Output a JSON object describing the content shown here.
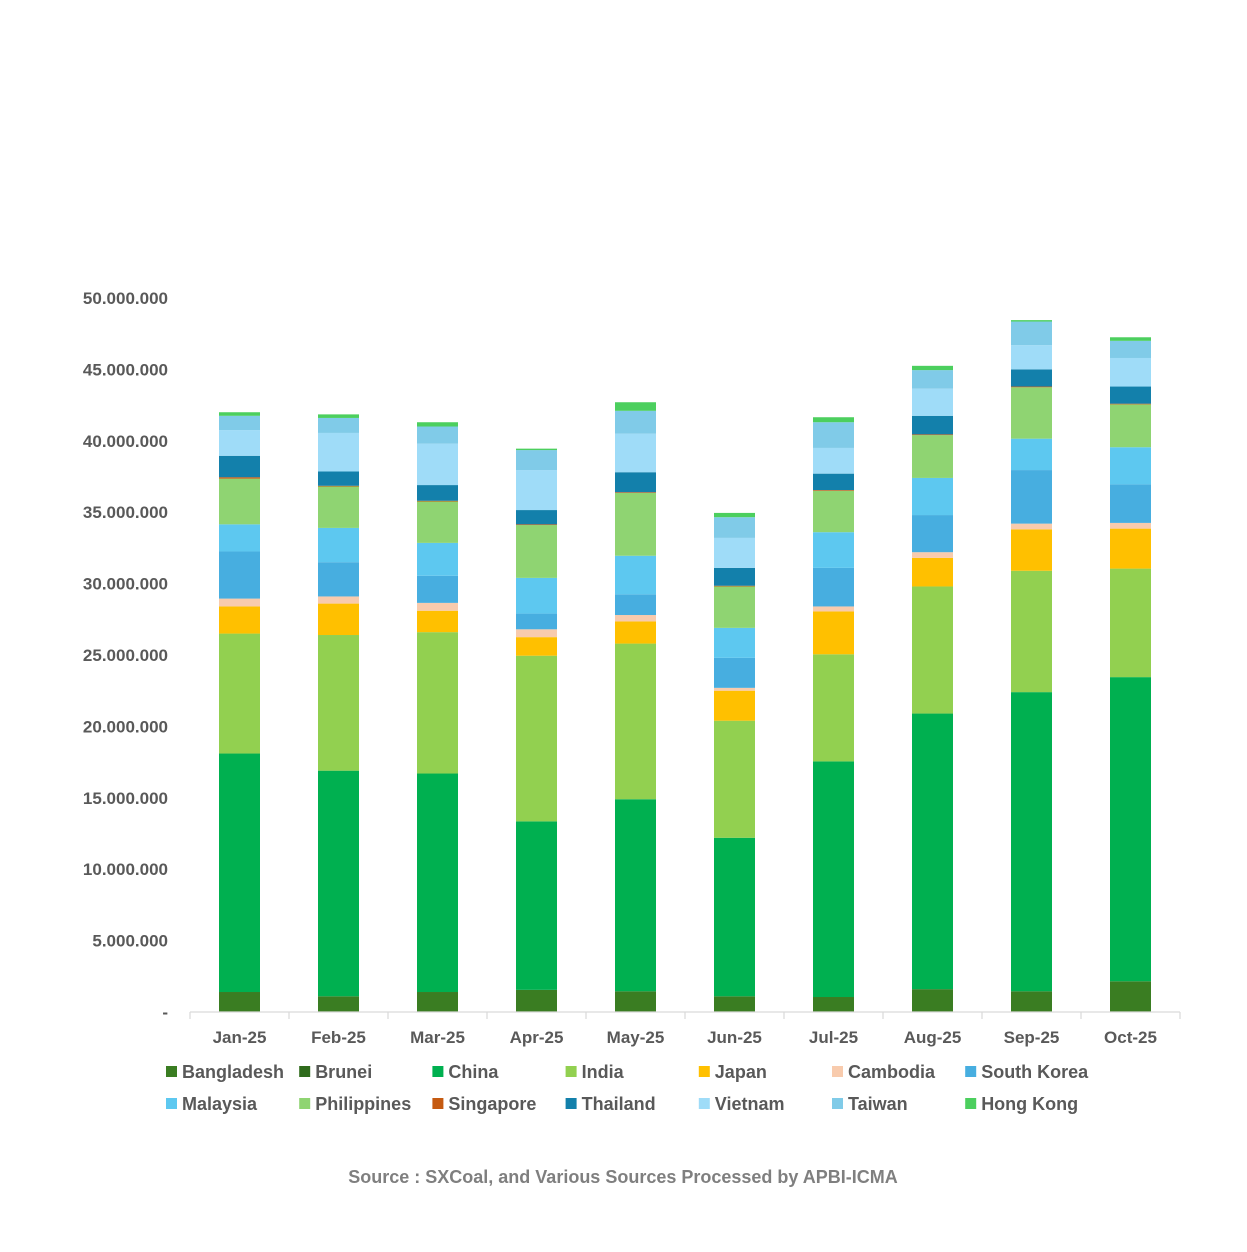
{
  "chart_data": {
    "type": "bar",
    "stacked": true,
    "title": "",
    "xlabel": "",
    "ylabel": "",
    "ylim": [
      0,
      50000000
    ],
    "y_ticks": [
      0,
      5000000,
      10000000,
      15000000,
      20000000,
      25000000,
      30000000,
      35000000,
      40000000,
      45000000,
      50000000
    ],
    "y_tick_labels": [
      "-",
      "5.000.000",
      "10.000.000",
      "15.000.000",
      "20.000.000",
      "25.000.000",
      "30.000.000",
      "35.000.000",
      "40.000.000",
      "45.000.000",
      "50.000.000"
    ],
    "categories": [
      "Jan-25",
      "Feb-25",
      "Mar-25",
      "Apr-25",
      "May-25",
      "Jun-25",
      "Jul-25",
      "Aug-25",
      "Sep-25",
      "Oct-25"
    ],
    "legend_position": "bottom",
    "series": [
      {
        "name": "Bangladesh",
        "color": "#3a7d22",
        "values": [
          1400000,
          1100000,
          1400000,
          1550000,
          1450000,
          1100000,
          1050000,
          1600000,
          1450000,
          2150000
        ]
      },
      {
        "name": "Brunei",
        "color": "#2f6b1c",
        "values": [
          0,
          0,
          0,
          0,
          0,
          0,
          0,
          0,
          0,
          0
        ]
      },
      {
        "name": "China",
        "color": "#00b050",
        "values": [
          16700000,
          15800000,
          15300000,
          11800000,
          13450000,
          11100000,
          16500000,
          19300000,
          20950000,
          21300000
        ]
      },
      {
        "name": "India",
        "color": "#92d050",
        "values": [
          8400000,
          9500000,
          9900000,
          11600000,
          10900000,
          8200000,
          7500000,
          8900000,
          8500000,
          7600000
        ]
      },
      {
        "name": "Japan",
        "color": "#ffc000",
        "values": [
          1900000,
          2200000,
          1500000,
          1300000,
          1550000,
          2100000,
          3000000,
          2000000,
          2900000,
          2800000
        ]
      },
      {
        "name": "Cambodia",
        "color": "#f8cbad",
        "values": [
          550000,
          500000,
          550000,
          550000,
          450000,
          200000,
          350000,
          400000,
          400000,
          400000
        ]
      },
      {
        "name": "South Korea",
        "color": "#47aee0",
        "values": [
          3300000,
          2400000,
          1900000,
          1100000,
          1450000,
          2100000,
          2700000,
          2600000,
          3750000,
          2700000
        ]
      },
      {
        "name": "Malaysia",
        "color": "#5dc8f0",
        "values": [
          1900000,
          2400000,
          2300000,
          2500000,
          2700000,
          2100000,
          2500000,
          2600000,
          2200000,
          2600000
        ]
      },
      {
        "name": "Philippines",
        "color": "#8fd472",
        "values": [
          3200000,
          2900000,
          2900000,
          3700000,
          4400000,
          2900000,
          2900000,
          3000000,
          3600000,
          3000000
        ]
      },
      {
        "name": "Singapore",
        "color": "#c55a11",
        "values": [
          100000,
          50000,
          50000,
          50000,
          50000,
          50000,
          50000,
          50000,
          50000,
          50000
        ]
      },
      {
        "name": "Thailand",
        "color": "#1380ab",
        "values": [
          1500000,
          1000000,
          1100000,
          1000000,
          1400000,
          1250000,
          1150000,
          1300000,
          1200000,
          1200000
        ]
      },
      {
        "name": "Vietnam",
        "color": "#9fdcf8",
        "values": [
          1800000,
          2700000,
          2900000,
          2800000,
          2700000,
          2100000,
          1800000,
          1900000,
          1700000,
          2000000
        ]
      },
      {
        "name": "Taiwan",
        "color": "#80cbe8",
        "values": [
          1000000,
          1050000,
          1200000,
          1400000,
          1600000,
          1450000,
          1800000,
          1300000,
          1650000,
          1200000
        ]
      },
      {
        "name": "Hong Kong",
        "color": "#4ccf5e",
        "values": [
          250000,
          250000,
          300000,
          100000,
          600000,
          300000,
          350000,
          300000,
          100000,
          250000
        ]
      }
    ],
    "source": "Source : SXCoal, and Various Sources Processed by APBI-ICMA"
  }
}
